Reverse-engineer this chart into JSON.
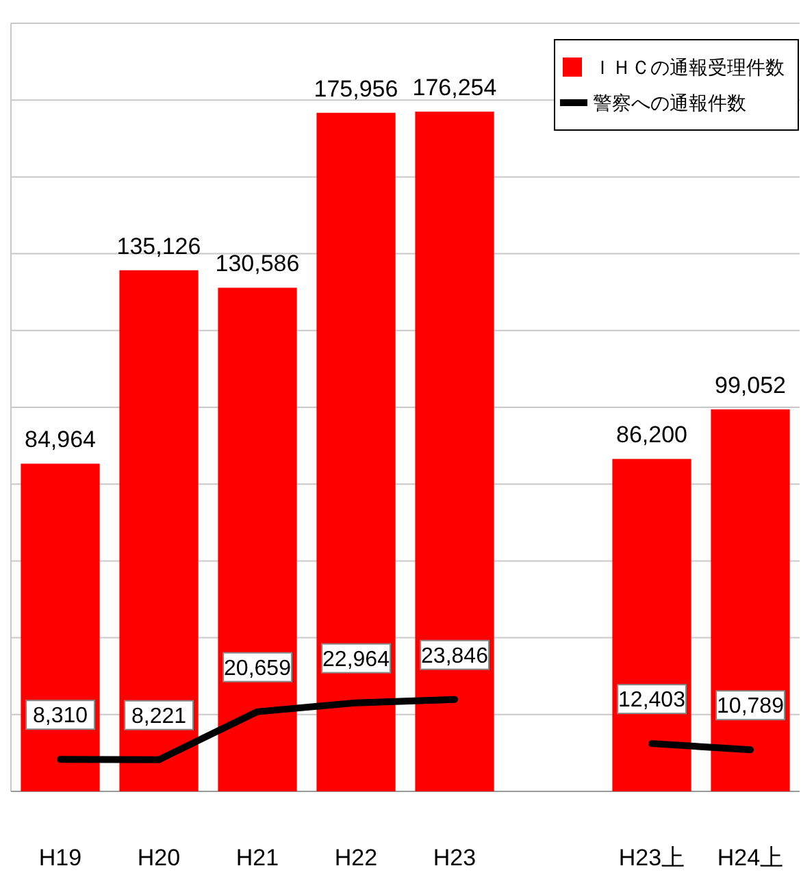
{
  "chart_data": {
    "type": "bar",
    "categories": [
      "H19",
      "H20",
      "H21",
      "H22",
      "H23",
      null,
      "H23上",
      "H24上"
    ],
    "series": [
      {
        "name": "ＩＨＣの通報受理件数",
        "color": "#ff0000",
        "values": [
          84964,
          135126,
          130586,
          175956,
          176254,
          null,
          86200,
          99052
        ],
        "value_labels": [
          "84,964",
          "135,126",
          "130,586",
          "175,956",
          "176,254",
          null,
          "86,200",
          "99,052"
        ]
      },
      {
        "name": "警察への通報件数",
        "type": "line",
        "color": "#000000",
        "values": [
          8310,
          8221,
          20659,
          22964,
          23846,
          null,
          12403,
          10789
        ],
        "value_labels": [
          "8,310",
          "8,221",
          "20,659",
          "22,964",
          "23,846",
          null,
          "12,403",
          "10,789"
        ]
      }
    ],
    "grid": "y",
    "legend": "top right",
    "tick_labels": "x",
    "line_style": "solid",
    "marker": "none"
  }
}
